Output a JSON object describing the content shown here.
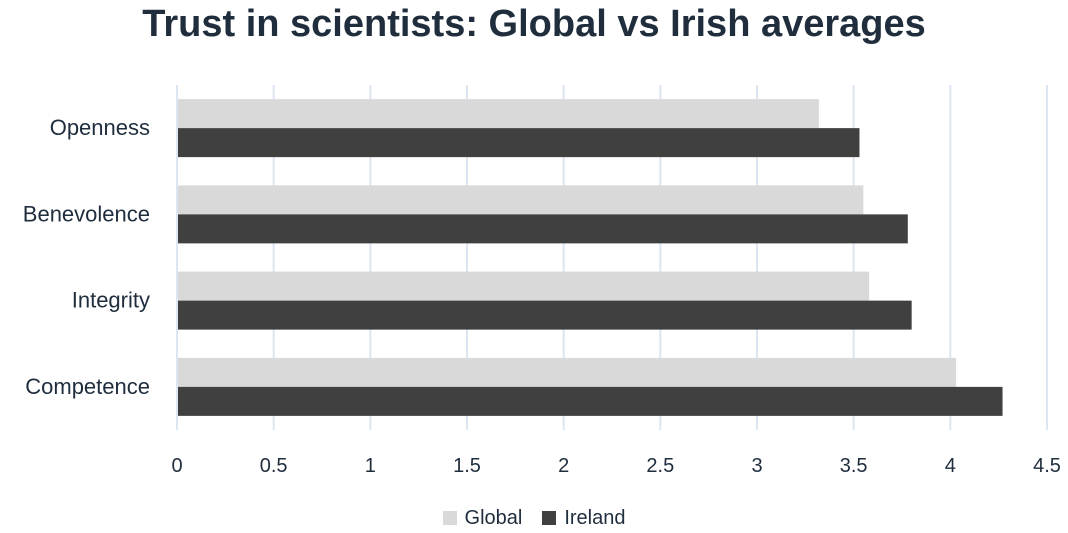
{
  "chart_data": {
    "type": "bar",
    "orientation": "horizontal",
    "title": "Trust in scientists: Global vs Irish averages",
    "categories": [
      "Openness",
      "Benevolence",
      "Integrity",
      "Competence"
    ],
    "series": [
      {
        "name": "Global",
        "values": [
          3.32,
          3.55,
          3.58,
          4.03
        ],
        "color": "#d9d9d9"
      },
      {
        "name": "Ireland",
        "values": [
          3.53,
          3.78,
          3.8,
          4.27
        ],
        "color": "#404040"
      }
    ],
    "xlim": [
      0,
      4.5
    ],
    "xticks": [
      "0",
      "0.5",
      "1",
      "1.5",
      "2",
      "2.5",
      "3",
      "3.5",
      "4",
      "4.5"
    ],
    "grid": true,
    "grid_color": "#dbe6f0",
    "text_color": "#1f2d3d",
    "legend_position": "bottom"
  }
}
